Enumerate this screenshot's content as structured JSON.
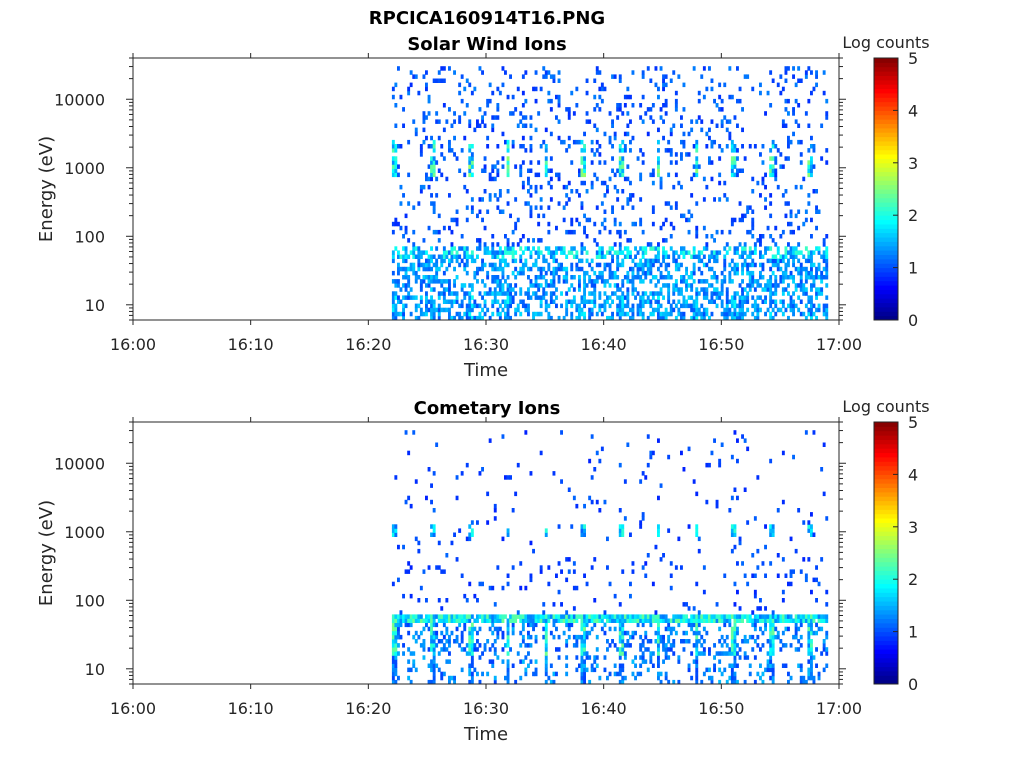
{
  "figure": {
    "title": "RPCICA160914T16.PNG"
  },
  "chart_data": [
    {
      "type": "heatmap",
      "title": "Solar Wind Ions",
      "xlabel": "Time",
      "ylabel": "Energy (eV)",
      "x_ticks": [
        "16:00",
        "16:10",
        "16:20",
        "16:30",
        "16:40",
        "16:50",
        "17:00"
      ],
      "xlim": [
        "16:00",
        "17:00"
      ],
      "y_scale": "log",
      "y_ticks": [
        10,
        100,
        1000,
        10000
      ],
      "ylim": [
        6,
        40000
      ],
      "data_start": "16:22",
      "data_end": "16:59",
      "colorbar": {
        "label": "Log counts",
        "ticks": [
          0,
          1,
          2,
          3,
          4,
          5
        ],
        "range": [
          0,
          5
        ],
        "colormap": "jet"
      },
      "summary": [
        {
          "energy_eV": 1000,
          "peak_log_counts": 2.5
        },
        {
          "energy_eV": 2000,
          "peak_log_counts": 2.0
        },
        {
          "energy_eV": 55,
          "peak_log_counts": 1.5
        },
        {
          "energy_eV": 10,
          "peak_log_counts": 1.0
        }
      ]
    },
    {
      "type": "heatmap",
      "title": "Cometary Ions",
      "xlabel": "Time",
      "ylabel": "Energy (eV)",
      "x_ticks": [
        "16:00",
        "16:10",
        "16:20",
        "16:30",
        "16:40",
        "16:50",
        "17:00"
      ],
      "xlim": [
        "16:00",
        "17:00"
      ],
      "y_scale": "log",
      "y_ticks": [
        10,
        100,
        1000,
        10000
      ],
      "ylim": [
        6,
        40000
      ],
      "data_start": "16:22",
      "data_end": "16:59",
      "colorbar": {
        "label": "Log counts",
        "ticks": [
          0,
          1,
          2,
          3,
          4,
          5
        ],
        "range": [
          0,
          5
        ],
        "colormap": "jet"
      },
      "summary": [
        {
          "energy_eV": 55,
          "peak_log_counts": 2.0
        },
        {
          "energy_eV": 25,
          "peak_log_counts": 2.0
        },
        {
          "energy_eV": 1000,
          "peak_log_counts": 1.5
        },
        {
          "energy_eV": 10,
          "peak_log_counts": 1.0
        }
      ]
    }
  ]
}
